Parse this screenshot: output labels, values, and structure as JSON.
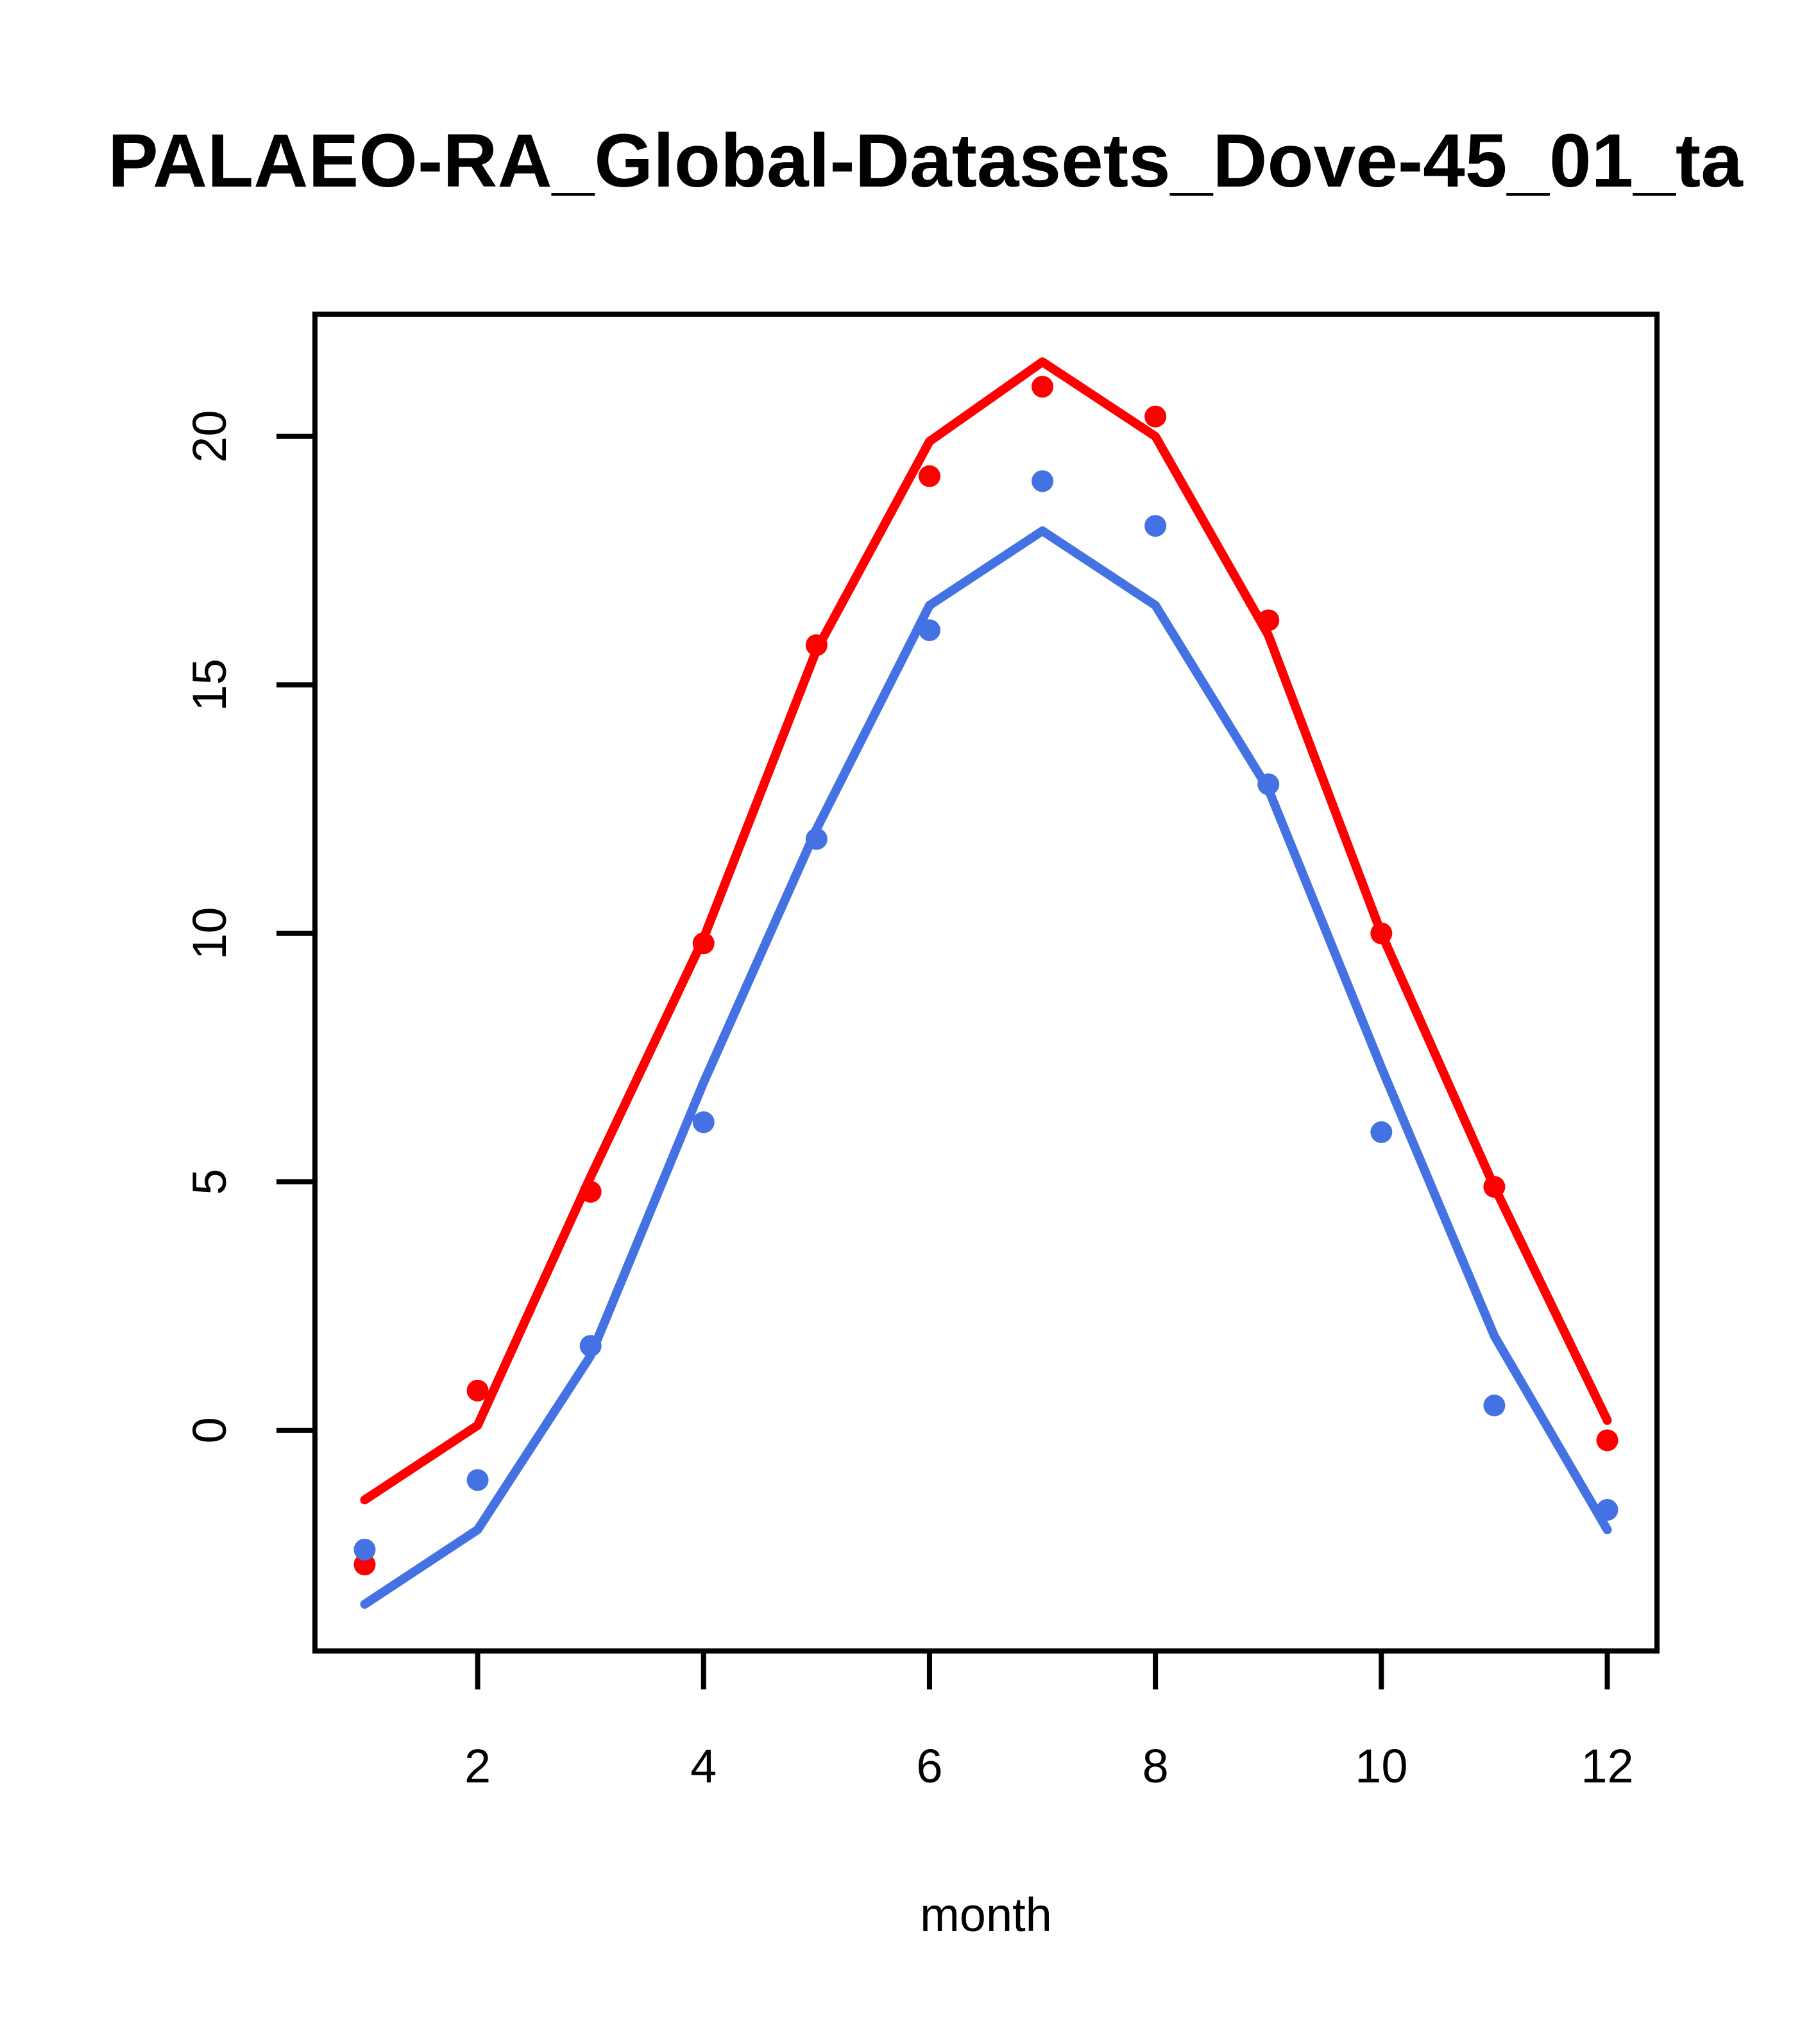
{
  "chart_data": {
    "type": "line",
    "title": "PALAEO-RA_Global-Datasets_Dove-45_01_ta",
    "xlabel": "month",
    "ylabel": "",
    "x": [
      1,
      2,
      3,
      4,
      5,
      6,
      7,
      8,
      9,
      10,
      11,
      12
    ],
    "series": [
      {
        "name": "red-line",
        "kind": "line",
        "color": "#fe0000",
        "values": [
          -1.4,
          0.1,
          5.1,
          9.9,
          15.7,
          19.9,
          21.5,
          20.0,
          16.0,
          10.0,
          4.9,
          0.2
        ]
      },
      {
        "name": "blue-line",
        "kind": "line",
        "color": "#4472e2",
        "values": [
          -3.5,
          -2.0,
          1.5,
          7.0,
          12.1,
          16.6,
          18.1,
          16.6,
          12.9,
          7.3,
          1.9,
          -2.0
        ]
      },
      {
        "name": "red-points",
        "kind": "scatter",
        "color": "#fe0000",
        "values": [
          -2.7,
          0.8,
          4.8,
          9.8,
          15.8,
          19.2,
          21.0,
          20.4,
          16.3,
          10.0,
          4.9,
          -0.2
        ]
      },
      {
        "name": "blue-points",
        "kind": "scatter",
        "color": "#4472e2",
        "values": [
          -2.4,
          -1.0,
          1.7,
          6.2,
          11.9,
          16.1,
          19.1,
          18.2,
          13.0,
          6.0,
          0.5,
          -1.6
        ]
      }
    ],
    "x_ticks": [
      2,
      4,
      6,
      8,
      10,
      12
    ],
    "x_tick_labels": [
      "2",
      "4",
      "6",
      "8",
      "10",
      "12"
    ],
    "y_ticks": [
      0,
      5,
      10,
      15,
      20
    ],
    "y_tick_labels": [
      "0",
      "5",
      "10",
      "15",
      "20"
    ],
    "xlim": [
      0.56,
      12.44
    ],
    "ylim": [
      -4.44,
      22.46
    ],
    "grid": "off",
    "legend": "none"
  },
  "style": {
    "axis_color": "#000000",
    "background": "#ffffff"
  }
}
